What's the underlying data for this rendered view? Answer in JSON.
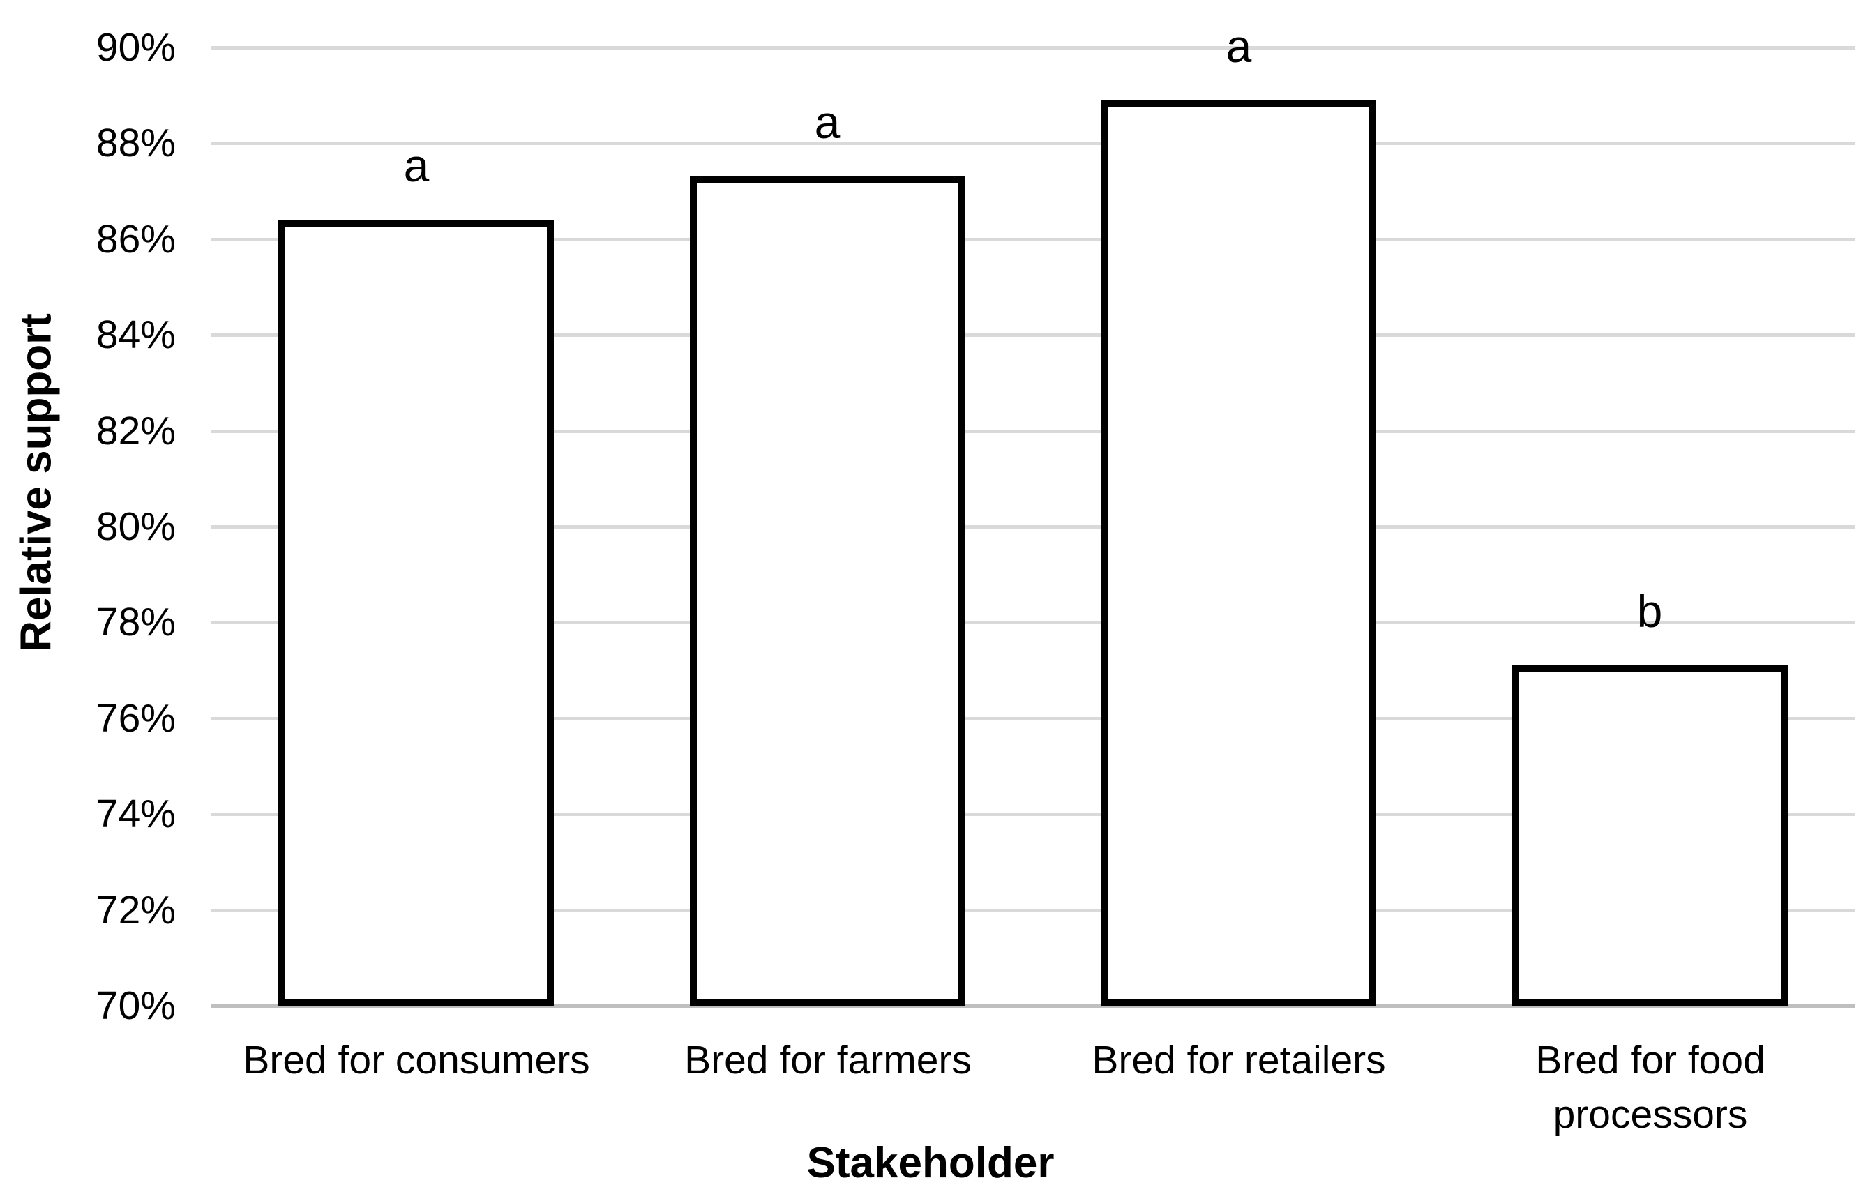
{
  "chart_data": {
    "type": "bar",
    "categories": [
      "Bred for consumers",
      "Bred for farmers",
      "Bred for retailers",
      "Bred for food processors"
    ],
    "values": [
      86.4,
      87.3,
      88.9,
      77.1
    ],
    "significance_letters": [
      "a",
      "a",
      "a",
      "b"
    ],
    "title": "",
    "xlabel": "Stakeholder",
    "ylabel": "Relative support",
    "ylim": [
      70,
      90
    ],
    "ytick_step": 2,
    "ytick_labels": [
      "90%",
      "88%",
      "86%",
      "84%",
      "82%",
      "80%",
      "78%",
      "76%",
      "74%",
      "72%",
      "70%"
    ],
    "grid": "horizontal",
    "legend": "none",
    "colors": {
      "bar_fill": "#ffffff",
      "bar_border": "#000000",
      "gridline": "#d9d9d9",
      "axis_line": "#bfbfbf",
      "text": "#000000"
    }
  }
}
